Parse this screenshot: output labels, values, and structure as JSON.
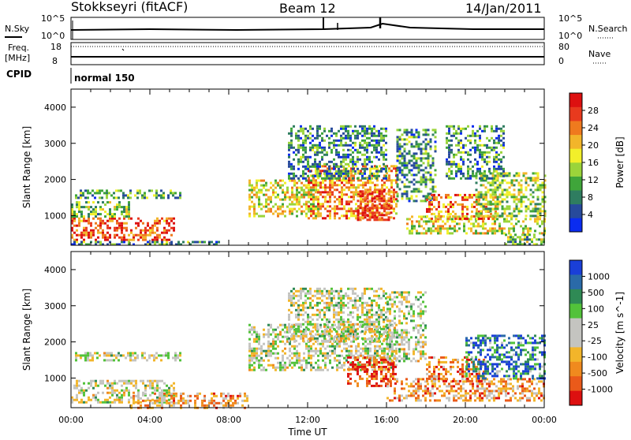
{
  "header": {
    "station": "Stokkseyri (fitACF)",
    "beam": "Beam 12",
    "date": "14/Jan/2011"
  },
  "strips": {
    "nsky_label": "N.Sky",
    "nsky_ticks": [
      "10^5",
      "10^0"
    ],
    "nsearch_label": "N.Search",
    "nsearch_ticks": [
      "10^5",
      "10^0"
    ],
    "freq_label": "Freq.",
    "freq_unit": "[MHz]",
    "freq_ticks": [
      "18",
      "8"
    ],
    "nave_label": "Nave",
    "nave_ticks": [
      "80",
      "0"
    ],
    "cpid_label": "CPID",
    "cpid_value": "normal 150"
  },
  "chart_data": [
    {
      "type": "heatmap",
      "panel": "power",
      "xlabel": "Time UT",
      "ylabel": "Slant Range [km]",
      "x_ticks": [
        "00:00",
        "04:00",
        "08:00",
        "12:00",
        "16:00",
        "20:00",
        "00:00"
      ],
      "x_range_hours": [
        0,
        24
      ],
      "y_ticks": [
        1000,
        2000,
        3000,
        4000
      ],
      "ylim": [
        180,
        4500
      ],
      "colorbar_label": "Power [dB]",
      "colorbar_ticks": [
        "4",
        "8",
        "12",
        "16",
        "20",
        "24",
        "28"
      ],
      "colorbar_colors": [
        "#0a2cf0",
        "#274a9c",
        "#2f7d60",
        "#3fa53a",
        "#9bd43a",
        "#f2ef2a",
        "#f2b52a",
        "#ef7a1e",
        "#e83a1e",
        "#dd1010"
      ],
      "scatter_regions": [
        {
          "t0": 0.0,
          "t1": 5.2,
          "r0": 300,
          "r1": 950,
          "level": 0.82
        },
        {
          "t0": 0.0,
          "t1": 3.0,
          "r0": 950,
          "r1": 1400,
          "level": 0.42
        },
        {
          "t0": 0.2,
          "t1": 5.5,
          "r0": 1480,
          "r1": 1720,
          "level": 0.32
        },
        {
          "t0": 0.0,
          "t1": 7.5,
          "r0": 180,
          "r1": 300,
          "level": 0.3
        },
        {
          "t0": 9.0,
          "t1": 12.5,
          "r0": 1000,
          "r1": 2000,
          "level": 0.55
        },
        {
          "t0": 12.0,
          "t1": 16.5,
          "r0": 900,
          "r1": 2400,
          "level": 0.72
        },
        {
          "t0": 14.5,
          "t1": 16.3,
          "r0": 900,
          "r1": 1700,
          "level": 0.88
        },
        {
          "t0": 11.0,
          "t1": 16.0,
          "r0": 2000,
          "r1": 3500,
          "level": 0.28
        },
        {
          "t0": 16.5,
          "t1": 18.5,
          "r0": 1400,
          "r1": 3400,
          "level": 0.3
        },
        {
          "t0": 17.0,
          "t1": 24.0,
          "r0": 500,
          "r1": 1000,
          "level": 0.55
        },
        {
          "t0": 18.0,
          "t1": 21.5,
          "r0": 900,
          "r1": 1600,
          "level": 0.75
        },
        {
          "t0": 20.5,
          "t1": 24.0,
          "r0": 1000,
          "r1": 2200,
          "level": 0.45
        },
        {
          "t0": 19.0,
          "t1": 22.0,
          "r0": 2000,
          "r1": 3500,
          "level": 0.3
        },
        {
          "t0": 22.0,
          "t1": 24.0,
          "r0": 180,
          "r1": 500,
          "level": 0.4
        }
      ]
    },
    {
      "type": "heatmap",
      "panel": "velocity",
      "xlabel": "Time UT",
      "ylabel": "Slant Range [km]",
      "x_ticks": [
        "00:00",
        "04:00",
        "08:00",
        "12:00",
        "16:00",
        "20:00",
        "00:00"
      ],
      "x_range_hours": [
        0,
        24
      ],
      "y_ticks": [
        1000,
        2000,
        3000,
        4000
      ],
      "ylim": [
        180,
        4500
      ],
      "colorbar_label": "Velocity [m s^-1]",
      "colorbar_ticks": [
        "1000",
        "500",
        "100",
        "25",
        "-25",
        "-100",
        "-500",
        "-1000"
      ],
      "colorbar_colors": [
        "#1a3fd8",
        "#2a6aa8",
        "#2f8a55",
        "#52c23a",
        "#c4c4c0",
        "#c4c4c0",
        "#f2b52a",
        "#f08a1e",
        "#ea5a1a",
        "#dd1010"
      ],
      "scatter_regions": [
        {
          "t0": 0.0,
          "t1": 5.2,
          "r0": 300,
          "r1": 950,
          "level": 0.5
        },
        {
          "t0": 0.2,
          "t1": 5.5,
          "r0": 1480,
          "r1": 1720,
          "level": 0.5
        },
        {
          "t0": 3.0,
          "t1": 9.0,
          "r0": 180,
          "r1": 600,
          "level": 0.7
        },
        {
          "t0": 9.0,
          "t1": 16.5,
          "r0": 1200,
          "r1": 2500,
          "level": 0.5
        },
        {
          "t0": 14.0,
          "t1": 16.5,
          "r0": 800,
          "r1": 1600,
          "level": 0.9
        },
        {
          "t0": 11.0,
          "t1": 16.0,
          "r0": 2000,
          "r1": 3500,
          "level": 0.5
        },
        {
          "t0": 16.0,
          "t1": 24.0,
          "r0": 400,
          "r1": 1000,
          "level": 0.72
        },
        {
          "t0": 18.0,
          "t1": 21.0,
          "r0": 900,
          "r1": 1600,
          "level": 0.75
        },
        {
          "t0": 20.0,
          "t1": 24.0,
          "r0": 1000,
          "r1": 2200,
          "level": 0.2
        },
        {
          "t0": 16.0,
          "t1": 18.0,
          "r0": 1500,
          "r1": 3400,
          "level": 0.5
        }
      ]
    }
  ]
}
